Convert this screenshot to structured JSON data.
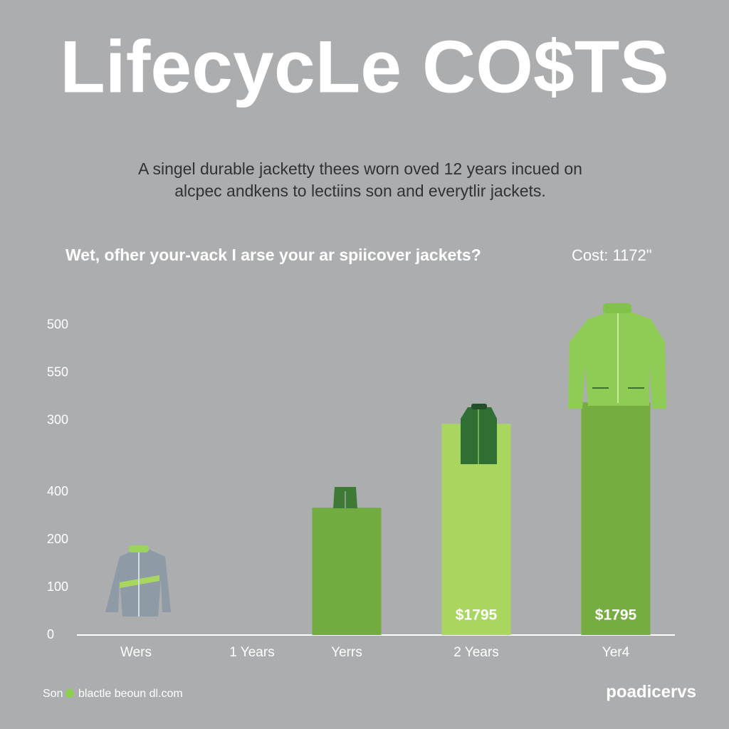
{
  "chart_data": {
    "type": "bar",
    "title": "LifecycLe CO$TS",
    "subtitle": [
      "A singel durable jacketty thees worn oved 12 years incued on",
      "alcpec andkens to lectiins son and everytlir jackets."
    ],
    "question": "Wet, ofher your-vack I arse your ar spiicover jackets?",
    "cost_note": "Cost: 1172\"",
    "categories": [
      "Wers",
      "1 Years",
      "Yerrs",
      "2 Years",
      "Yer4"
    ],
    "values": [
      null,
      null,
      267,
      443,
      488
    ],
    "colors": [
      "#8e9aa6",
      "#8e9aa6",
      "#72ab3f",
      "#a8d65e",
      "#76ad40"
    ],
    "annotations": [
      "$1795",
      "$1795"
    ],
    "ylim": [
      0,
      660
    ],
    "yticks": [
      0,
      100,
      200,
      {
        "value": 300,
        "label": "400"
      },
      {
        "value": 450,
        "label": "300"
      },
      550,
      {
        "value": 650,
        "label": "500"
      }
    ],
    "grid": false,
    "footer": {
      "left_prefix": "Son",
      "left_site": "blactle beoun dl.com",
      "right": "poadicervs"
    }
  }
}
